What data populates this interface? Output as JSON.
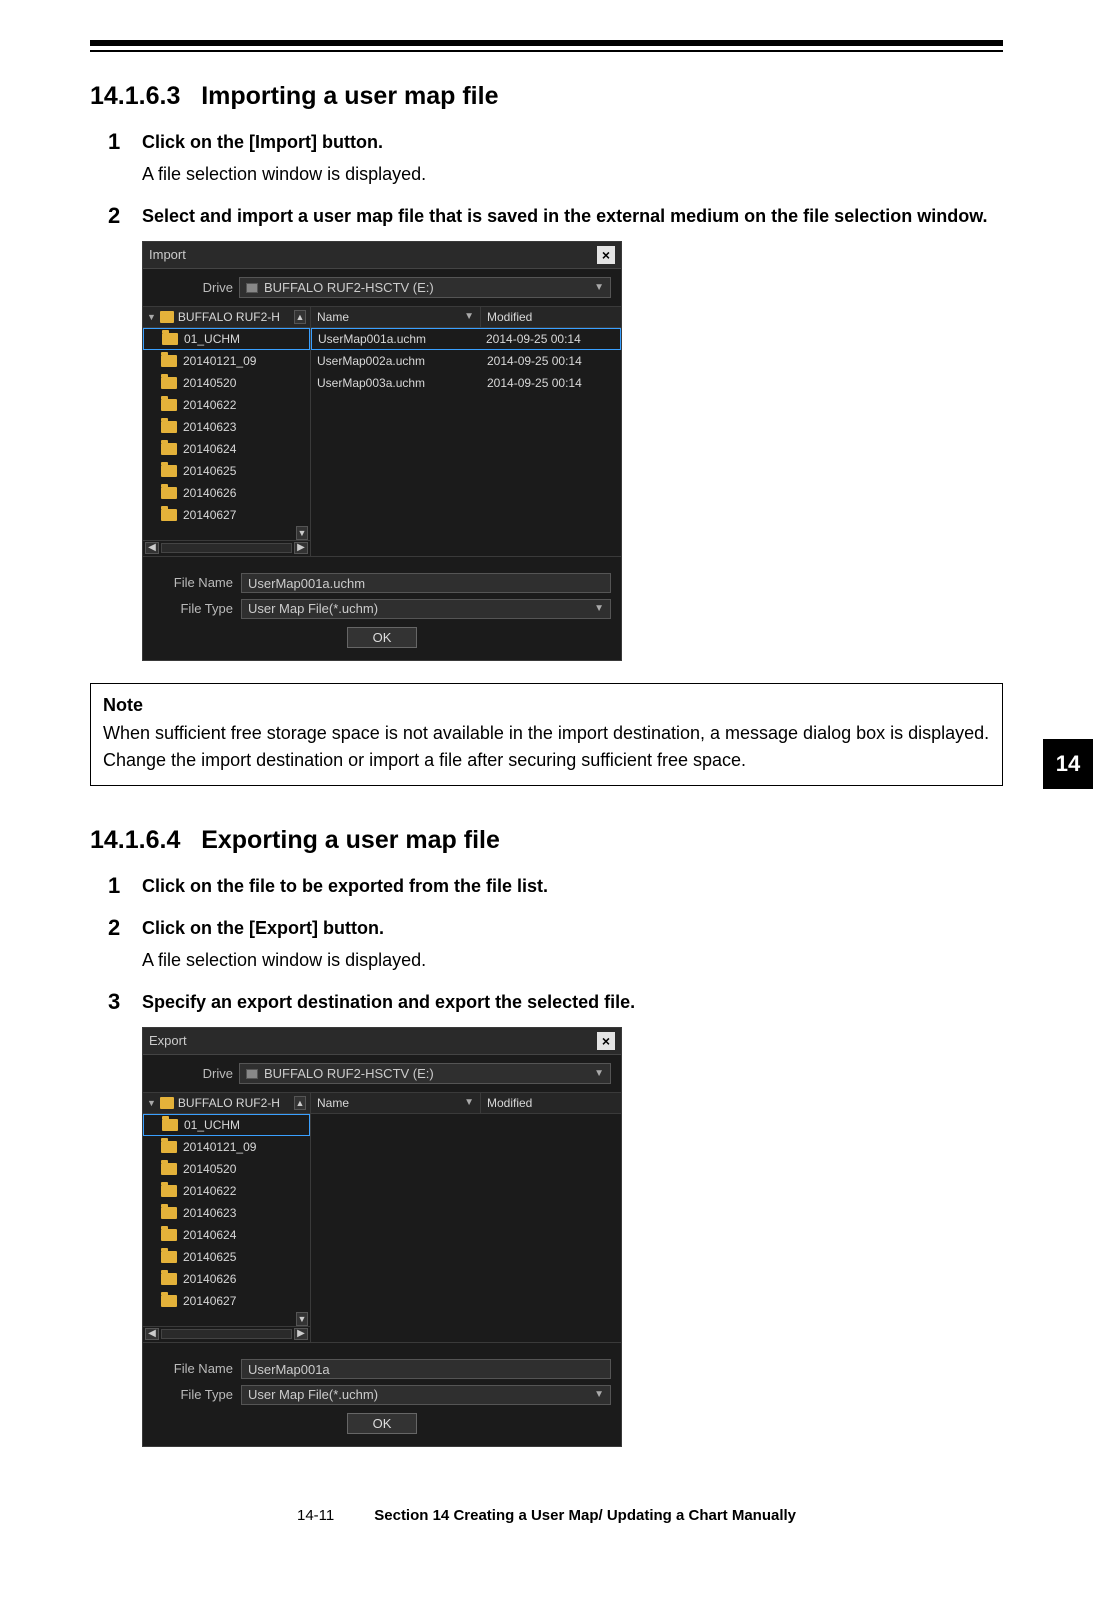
{
  "section1": {
    "number": "14.1.6.3",
    "title": "Importing a user map file",
    "steps": [
      {
        "num": "1",
        "title": "Click on the [Import] button.",
        "text": "A file selection window is displayed."
      },
      {
        "num": "2",
        "title": "Select and import a user map file that is saved in the external medium on the file selection window.",
        "text": ""
      }
    ]
  },
  "importDialog": {
    "title": "Import",
    "driveLabel": "Drive",
    "drive": "BUFFALO RUF2-HSCTV (E:)",
    "folderHeader": "BUFFALO RUF2-H",
    "folders": [
      "01_UCHM",
      "20140121_09",
      "20140520",
      "20140622",
      "20140623",
      "20140624",
      "20140625",
      "20140626",
      "20140627"
    ],
    "selectedFolderIndex": 0,
    "nameCol": "Name",
    "modCol": "Modified",
    "files": [
      {
        "name": "UserMap001a.uchm",
        "modified": "2014-09-25 00:14"
      },
      {
        "name": "UserMap002a.uchm",
        "modified": "2014-09-25 00:14"
      },
      {
        "name": "UserMap003a.uchm",
        "modified": "2014-09-25 00:14"
      }
    ],
    "selectedFileIndex": 0,
    "fileNameLabel": "File Name",
    "fileNameValue": "UserMap001a.uchm",
    "fileTypeLabel": "File Type",
    "fileTypeValue": "User Map File(*.uchm)",
    "ok": "OK"
  },
  "note": {
    "title": "Note",
    "line1": "When sufficient free storage space is not available in the import destination, a message dialog box is displayed.",
    "line2": "Change the import destination or import a file after securing sufficient free space."
  },
  "sideTab": "14",
  "section2": {
    "number": "14.1.6.4",
    "title": "Exporting a user map file",
    "steps": [
      {
        "num": "1",
        "title": "Click on the file to be exported from the file list.",
        "text": ""
      },
      {
        "num": "2",
        "title": "Click on the [Export] button.",
        "text": "A file selection window is displayed."
      },
      {
        "num": "3",
        "title": "Specify an export destination and export the selected file.",
        "text": ""
      }
    ]
  },
  "exportDialog": {
    "title": "Export",
    "driveLabel": "Drive",
    "drive": "BUFFALO RUF2-HSCTV (E:)",
    "folderHeader": "BUFFALO RUF2-H",
    "folders": [
      "01_UCHM",
      "20140121_09",
      "20140520",
      "20140622",
      "20140623",
      "20140624",
      "20140625",
      "20140626",
      "20140627"
    ],
    "selectedFolderIndex": 0,
    "nameCol": "Name",
    "modCol": "Modified",
    "fileNameLabel": "File Name",
    "fileNameValue": "UserMap001a",
    "fileTypeLabel": "File Type",
    "fileTypeValue": "User Map File(*.uchm)",
    "ok": "OK"
  },
  "footer": {
    "page": "14-11",
    "section": "Section 14    Creating a User Map/ Updating a Chart Manually"
  }
}
